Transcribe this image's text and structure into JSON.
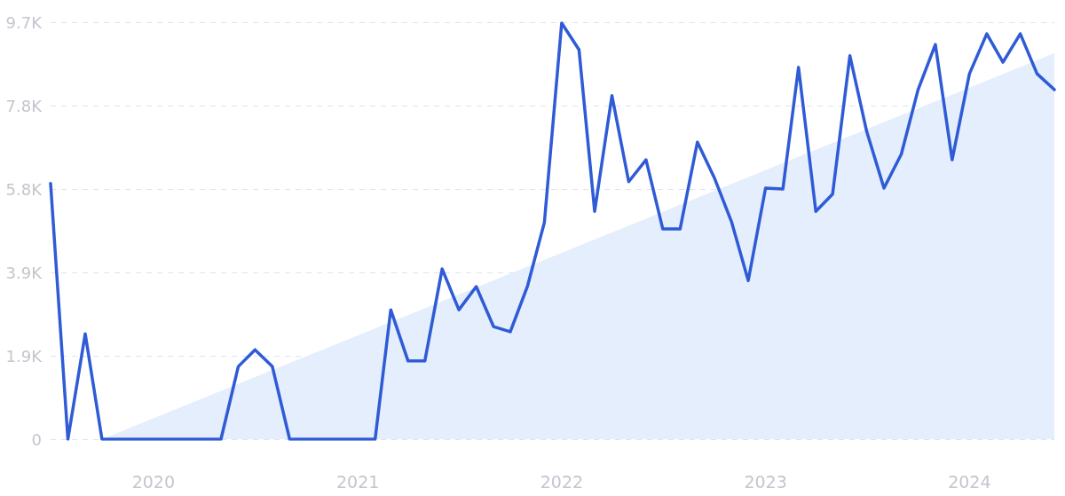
{
  "chart_data": {
    "type": "line",
    "x": [
      "2019-07",
      "2019-08",
      "2019-09",
      "2019-10",
      "2019-11",
      "2019-12",
      "2020-01",
      "2020-02",
      "2020-03",
      "2020-04",
      "2020-05",
      "2020-06",
      "2020-07",
      "2020-08",
      "2020-09",
      "2020-10",
      "2020-11",
      "2020-12",
      "2021-01",
      "2021-02",
      "2021-03",
      "2021-04",
      "2021-05",
      "2021-06",
      "2021-07",
      "2021-08",
      "2021-09",
      "2021-10",
      "2021-11",
      "2021-12",
      "2022-01",
      "2022-02",
      "2022-03",
      "2022-04",
      "2022-05",
      "2022-06",
      "2022-07",
      "2022-08",
      "2022-09",
      "2022-10",
      "2022-11",
      "2022-12",
      "2023-01",
      "2023-02",
      "2023-03",
      "2023-04",
      "2023-05",
      "2023-06",
      "2023-07",
      "2023-08",
      "2023-09",
      "2023-10",
      "2023-11",
      "2023-12",
      "2024-01",
      "2024-02",
      "2024-03",
      "2024-04",
      "2024-05",
      "2024-06"
    ],
    "series": [
      {
        "color": "#2f5bd6",
        "values": [
          5950,
          0,
          2450,
          0,
          0,
          0,
          0,
          0,
          0,
          0,
          0,
          1690,
          2080,
          1690,
          0,
          0,
          0,
          0,
          0,
          0,
          3010,
          1820,
          1820,
          3960,
          3010,
          3550,
          2620,
          2500,
          3570,
          5040,
          9680,
          9060,
          5300,
          7990,
          5990,
          6500,
          4890,
          4890,
          6910,
          6090,
          5060,
          3690,
          5840,
          5820,
          8650,
          5300,
          5700,
          8920,
          7160,
          5840,
          6630,
          8130,
          9180,
          6500,
          8500,
          9430,
          8770,
          9430,
          8500,
          8130
        ]
      },
      {
        "type": "area",
        "color": "#e4eefc",
        "x": [
          "2019-10",
          "2024-06"
        ],
        "values": [
          0,
          8980
        ]
      }
    ],
    "xlim": [
      "2019-07",
      "2024-06"
    ],
    "xticks": [
      {
        "value": "2020-01",
        "label": "2020"
      },
      {
        "value": "2021-01",
        "label": "2021"
      },
      {
        "value": "2022-01",
        "label": "2022"
      },
      {
        "value": "2023-01",
        "label": "2023"
      },
      {
        "value": "2024-01",
        "label": "2024"
      }
    ],
    "ylim": [
      0,
      9700
    ],
    "yticks": [
      0,
      {
        "value": 1940,
        "label": "1.9K"
      },
      {
        "value": 3880,
        "label": "3.9K"
      },
      {
        "value": 5820,
        "label": "5.8K"
      },
      {
        "value": 7760,
        "label": "7.8K"
      },
      {
        "value": 9700,
        "label": "9.7K"
      }
    ],
    "grid": "y",
    "marker": "none",
    "line_style": "solid"
  }
}
